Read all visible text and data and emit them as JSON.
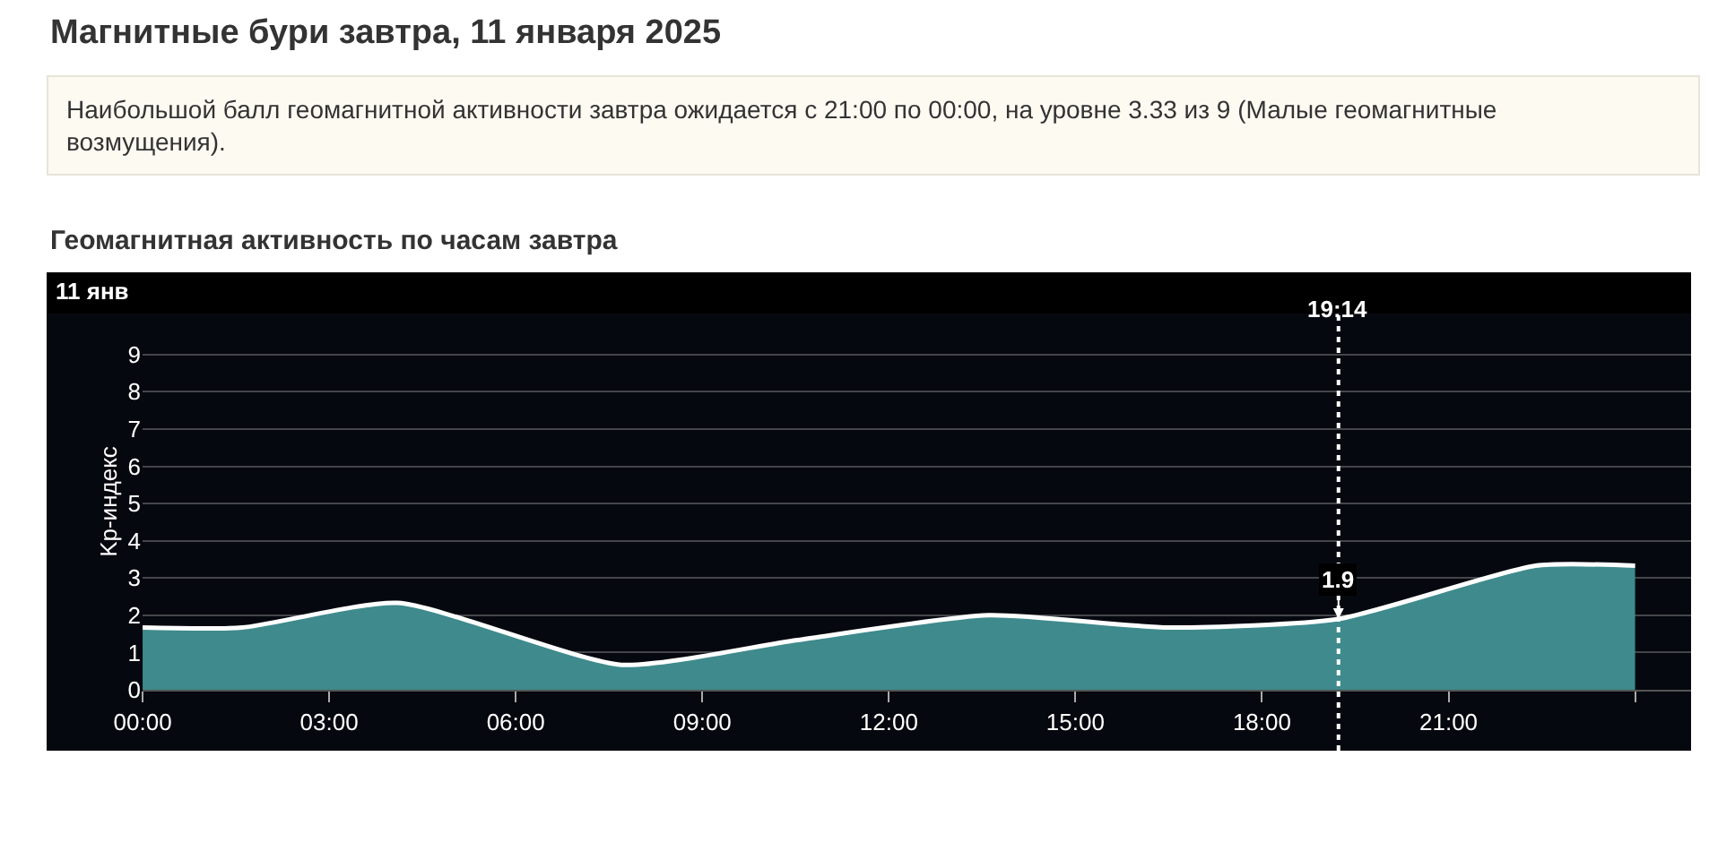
{
  "chart_data": {
    "type": "area",
    "title": "Магнитные бури завтра, 11 января 2025",
    "subtitle": "Наибольшой балл геомагнитной активности завтра ожидается с 21:00 по 00:00, на уровне 3.33 из 9 (Малые геомагнитные возмущения).",
    "ylabel": "Kp-индекс",
    "annotations": [
      "Геомагнитная активность по часам завтра",
      "11 янв",
      {
        "text": "1.9",
        "x": 19.23,
        "y": 1.9
      }
    ],
    "x": [
      0,
      1.6,
      4.1,
      7.7,
      10.5,
      13.6,
      16.5,
      19.23,
      22.4,
      24
    ],
    "series": [
      {
        "color": "#3f8a8c",
        "values": [
          1.67,
          1.67,
          2.33,
          0.67,
          1.33,
          2.0,
          1.67,
          1.9,
          3.33,
          3.33
        ]
      }
    ],
    "xlim": [
      0,
      24.9
    ],
    "xticks": [
      {
        "value": 0,
        "label": "00:00"
      },
      {
        "value": 3,
        "label": "03:00"
      },
      {
        "value": 6,
        "label": "06:00"
      },
      {
        "value": 9,
        "label": "09:00"
      },
      {
        "value": 12,
        "label": "12:00"
      },
      {
        "value": 15,
        "label": "15:00"
      },
      {
        "value": 18,
        "label": "18:00"
      },
      {
        "value": 21,
        "label": "21:00"
      },
      {
        "value": 24,
        "label": null
      }
    ],
    "ylim": [
      0,
      10.1
    ],
    "yticks": [
      0,
      1,
      2,
      3,
      4,
      5,
      6,
      7,
      8,
      9
    ],
    "ref_lines": [
      {
        "axis": "x",
        "value": 19.23,
        "label": "19:14",
        "color": "#ffffff",
        "line_style": "dotted"
      }
    ],
    "grid": "y",
    "legend": false,
    "marker": "none"
  }
}
